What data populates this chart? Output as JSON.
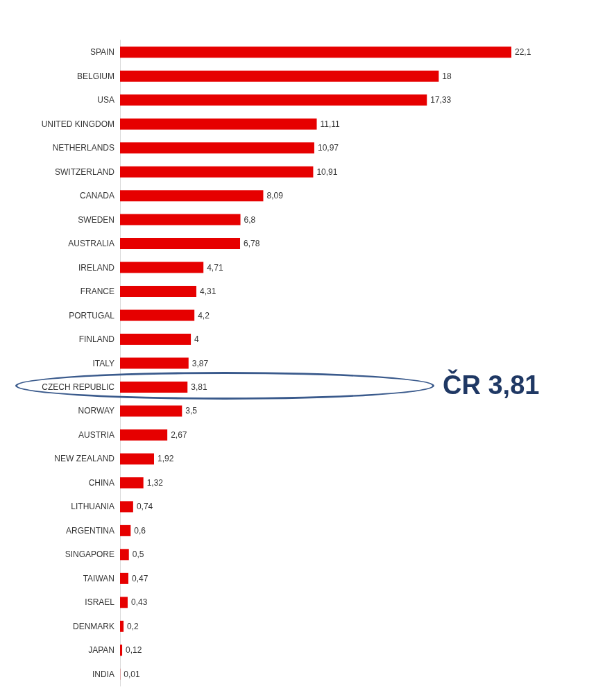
{
  "chart_data": {
    "type": "bar",
    "orientation": "horizontal",
    "tick_labels": "y",
    "categories": [
      "SPAIN",
      "BELGIUM",
      "USA",
      "UNITED KINGDOM",
      "NETHERLANDS",
      "SWITZERLAND",
      "CANADA",
      "SWEDEN",
      "AUSTRALIA",
      "IRELAND",
      "FRANCE",
      "PORTUGAL",
      "FINLAND",
      "ITALY",
      "CZECH REPUBLIC",
      "NORWAY",
      "AUSTRIA",
      "NEW ZEALAND",
      "CHINA",
      "LITHUANIA",
      "ARGENTINA",
      "SINGAPORE",
      "TAIWAN",
      "ISRAEL",
      "DENMARK",
      "JAPAN",
      "INDIA"
    ],
    "values": [
      22.1,
      18,
      17.33,
      11.11,
      10.97,
      10.91,
      8.09,
      6.8,
      6.78,
      4.71,
      4.31,
      4.2,
      4,
      3.87,
      3.81,
      3.5,
      2.67,
      1.92,
      1.32,
      0.74,
      0.6,
      0.5,
      0.47,
      0.43,
      0.2,
      0.12,
      0.01
    ],
    "value_labels": [
      "22,1",
      "18",
      "17,33",
      "11,11",
      "10,97",
      "10,91",
      "8,09",
      "6,8",
      "6,78",
      "4,71",
      "4,31",
      "4,2",
      "4",
      "3,87",
      "3,81",
      "3,5",
      "2,67",
      "1,92",
      "1,32",
      "0,74",
      "0,6",
      "0,5",
      "0,47",
      "0,43",
      "0,2",
      "0,12",
      "0,01"
    ],
    "color": "#e60000",
    "annotations": [
      "ČR 3,81"
    ]
  }
}
